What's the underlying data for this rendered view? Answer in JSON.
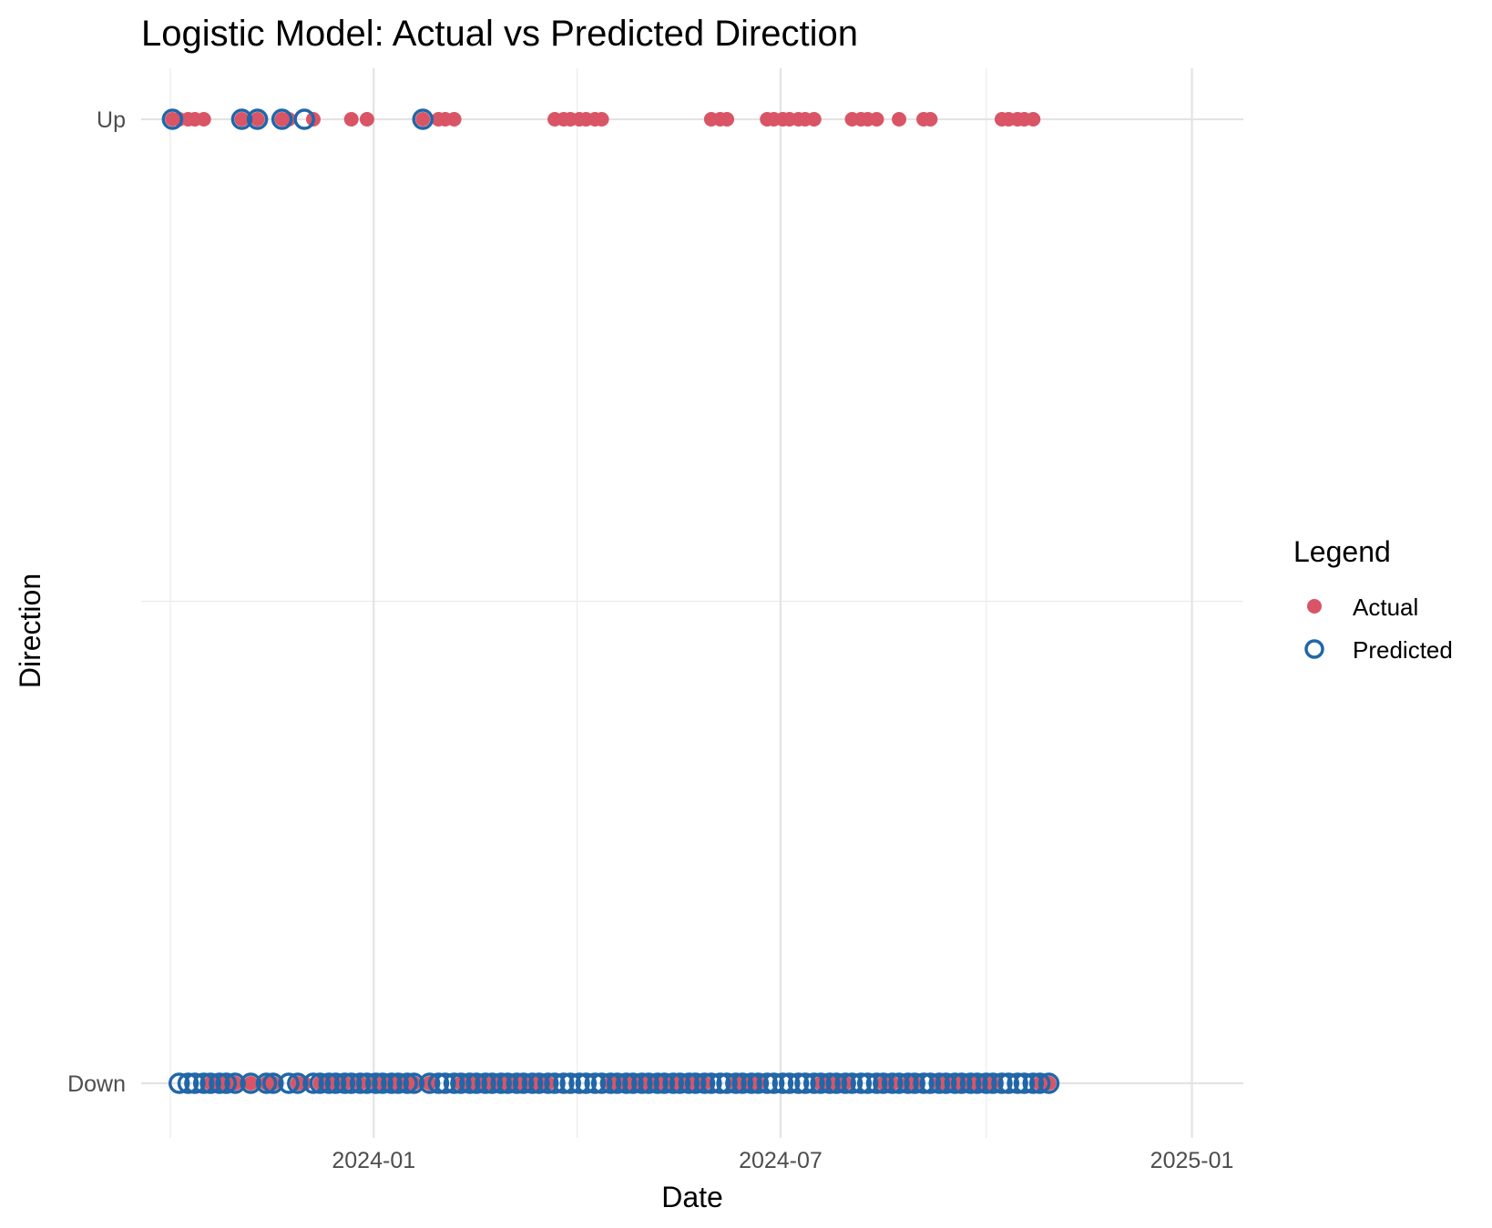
{
  "chart_data": {
    "type": "scatter",
    "title": "Logistic Model: Actual vs Predicted Direction",
    "xlabel": "Date",
    "ylabel": "Direction",
    "x_axis_type": "date",
    "xlim": [
      "2023-09-19",
      "2025-01-24"
    ],
    "x_ticks": [
      "2024-01",
      "2024-07",
      "2025-01"
    ],
    "y_categories": [
      "Down",
      "Up"
    ],
    "grid": true,
    "legend": {
      "title": "Legend",
      "position": "right",
      "entries": [
        "Actual",
        "Predicted"
      ]
    },
    "colors": {
      "Actual": "#d95566",
      "Predicted": "#2166a8"
    },
    "series": [
      {
        "name": "Actual",
        "marker": "filled-circle",
        "points": [
          {
            "x": "2023-10-03",
            "y": "Up"
          },
          {
            "x": "2023-10-06",
            "y": "Up"
          },
          {
            "x": "2023-10-10",
            "y": "Up"
          },
          {
            "x": "2023-10-13",
            "y": "Up"
          },
          {
            "x": "2023-10-17",
            "y": "Up"
          },
          {
            "x": "2023-10-20",
            "y": "Down"
          },
          {
            "x": "2023-10-24",
            "y": "Down"
          },
          {
            "x": "2023-10-27",
            "y": "Down"
          },
          {
            "x": "2023-10-31",
            "y": "Down"
          },
          {
            "x": "2023-11-03",
            "y": "Up"
          },
          {
            "x": "2023-11-07",
            "y": "Down"
          },
          {
            "x": "2023-11-10",
            "y": "Up"
          },
          {
            "x": "2023-11-14",
            "y": "Down"
          },
          {
            "x": "2023-11-17",
            "y": "Down"
          },
          {
            "x": "2023-11-21",
            "y": "Up"
          },
          {
            "x": "2023-11-24",
            "y": "Up"
          },
          {
            "x": "2023-11-28",
            "y": "Down"
          },
          {
            "x": "2023-12-01",
            "y": "Down"
          },
          {
            "x": "2023-12-05",
            "y": "Up"
          },
          {
            "x": "2023-12-08",
            "y": "Down"
          },
          {
            "x": "2023-12-12",
            "y": "Down"
          },
          {
            "x": "2023-12-15",
            "y": "Down"
          },
          {
            "x": "2023-12-19",
            "y": "Down"
          },
          {
            "x": "2023-12-22",
            "y": "Up"
          },
          {
            "x": "2023-12-26",
            "y": "Down"
          },
          {
            "x": "2023-12-29",
            "y": "Up"
          },
          {
            "x": "2024-01-02",
            "y": "Down"
          },
          {
            "x": "2024-01-05",
            "y": "Down"
          },
          {
            "x": "2024-01-09",
            "y": "Down"
          },
          {
            "x": "2024-01-12",
            "y": "Down"
          },
          {
            "x": "2024-01-16",
            "y": "Down"
          },
          {
            "x": "2024-01-19",
            "y": "Down"
          },
          {
            "x": "2024-01-23",
            "y": "Up"
          },
          {
            "x": "2024-01-26",
            "y": "Down"
          },
          {
            "x": "2024-01-30",
            "y": "Up"
          },
          {
            "x": "2024-02-02",
            "y": "Up"
          },
          {
            "x": "2024-02-06",
            "y": "Up"
          },
          {
            "x": "2024-02-09",
            "y": "Down"
          },
          {
            "x": "2024-02-13",
            "y": "Down"
          },
          {
            "x": "2024-02-16",
            "y": "Down"
          },
          {
            "x": "2024-02-20",
            "y": "Down"
          },
          {
            "x": "2024-02-23",
            "y": "Down"
          },
          {
            "x": "2024-02-27",
            "y": "Down"
          },
          {
            "x": "2024-03-01",
            "y": "Down"
          },
          {
            "x": "2024-03-05",
            "y": "Down"
          },
          {
            "x": "2024-03-08",
            "y": "Down"
          },
          {
            "x": "2024-03-12",
            "y": "Down"
          },
          {
            "x": "2024-03-15",
            "y": "Down"
          },
          {
            "x": "2024-03-19",
            "y": "Down"
          },
          {
            "x": "2024-03-22",
            "y": "Up"
          },
          {
            "x": "2024-03-26",
            "y": "Up"
          },
          {
            "x": "2024-03-29",
            "y": "Up"
          },
          {
            "x": "2024-04-02",
            "y": "Up"
          },
          {
            "x": "2024-04-05",
            "y": "Up"
          },
          {
            "x": "2024-04-09",
            "y": "Up"
          },
          {
            "x": "2024-04-12",
            "y": "Up"
          },
          {
            "x": "2024-04-16",
            "y": "Down"
          },
          {
            "x": "2024-04-19",
            "y": "Down"
          },
          {
            "x": "2024-04-23",
            "y": "Down"
          },
          {
            "x": "2024-04-26",
            "y": "Down"
          },
          {
            "x": "2024-04-30",
            "y": "Down"
          },
          {
            "x": "2024-05-03",
            "y": "Down"
          },
          {
            "x": "2024-05-07",
            "y": "Down"
          },
          {
            "x": "2024-05-10",
            "y": "Down"
          },
          {
            "x": "2024-05-14",
            "y": "Down"
          },
          {
            "x": "2024-05-17",
            "y": "Down"
          },
          {
            "x": "2024-05-21",
            "y": "Down"
          },
          {
            "x": "2024-05-24",
            "y": "Down"
          },
          {
            "x": "2024-05-28",
            "y": "Down"
          },
          {
            "x": "2024-05-31",
            "y": "Up"
          },
          {
            "x": "2024-06-04",
            "y": "Up"
          },
          {
            "x": "2024-06-07",
            "y": "Up"
          },
          {
            "x": "2024-06-11",
            "y": "Down"
          },
          {
            "x": "2024-06-14",
            "y": "Down"
          },
          {
            "x": "2024-06-18",
            "y": "Down"
          },
          {
            "x": "2024-06-21",
            "y": "Down"
          },
          {
            "x": "2024-06-25",
            "y": "Up"
          },
          {
            "x": "2024-06-28",
            "y": "Up"
          },
          {
            "x": "2024-07-02",
            "y": "Up"
          },
          {
            "x": "2024-07-05",
            "y": "Up"
          },
          {
            "x": "2024-07-09",
            "y": "Up"
          },
          {
            "x": "2024-07-12",
            "y": "Up"
          },
          {
            "x": "2024-07-16",
            "y": "Up"
          },
          {
            "x": "2024-07-19",
            "y": "Down"
          },
          {
            "x": "2024-07-23",
            "y": "Down"
          },
          {
            "x": "2024-07-26",
            "y": "Down"
          },
          {
            "x": "2024-07-30",
            "y": "Down"
          },
          {
            "x": "2024-08-02",
            "y": "Up"
          },
          {
            "x": "2024-08-06",
            "y": "Up"
          },
          {
            "x": "2024-08-09",
            "y": "Up"
          },
          {
            "x": "2024-08-13",
            "y": "Up"
          },
          {
            "x": "2024-08-16",
            "y": "Down"
          },
          {
            "x": "2024-08-20",
            "y": "Down"
          },
          {
            "x": "2024-08-23",
            "y": "Up"
          },
          {
            "x": "2024-08-27",
            "y": "Down"
          },
          {
            "x": "2024-08-30",
            "y": "Down"
          },
          {
            "x": "2024-09-03",
            "y": "Up"
          },
          {
            "x": "2024-09-06",
            "y": "Up"
          },
          {
            "x": "2024-09-10",
            "y": "Down"
          },
          {
            "x": "2024-09-13",
            "y": "Down"
          },
          {
            "x": "2024-09-17",
            "y": "Down"
          },
          {
            "x": "2024-09-20",
            "y": "Down"
          },
          {
            "x": "2024-09-24",
            "y": "Down"
          },
          {
            "x": "2024-09-27",
            "y": "Down"
          },
          {
            "x": "2024-10-01",
            "y": "Down"
          },
          {
            "x": "2024-10-04",
            "y": "Down"
          },
          {
            "x": "2024-10-08",
            "y": "Up"
          },
          {
            "x": "2024-10-11",
            "y": "Up"
          },
          {
            "x": "2024-10-15",
            "y": "Up"
          },
          {
            "x": "2024-10-18",
            "y": "Up"
          },
          {
            "x": "2024-10-22",
            "y": "Up"
          },
          {
            "x": "2024-10-25",
            "y": "Down"
          },
          {
            "x": "2024-10-29",
            "y": "Down"
          }
        ]
      },
      {
        "name": "Predicted",
        "marker": "open-circle",
        "points": [
          {
            "x": "2023-10-03",
            "y": "Up"
          },
          {
            "x": "2023-10-06",
            "y": "Down"
          },
          {
            "x": "2023-10-10",
            "y": "Down"
          },
          {
            "x": "2023-10-13",
            "y": "Down"
          },
          {
            "x": "2023-10-17",
            "y": "Down"
          },
          {
            "x": "2023-10-20",
            "y": "Down"
          },
          {
            "x": "2023-10-24",
            "y": "Down"
          },
          {
            "x": "2023-10-27",
            "y": "Down"
          },
          {
            "x": "2023-10-31",
            "y": "Down"
          },
          {
            "x": "2023-11-03",
            "y": "Up"
          },
          {
            "x": "2023-11-07",
            "y": "Down"
          },
          {
            "x": "2023-11-10",
            "y": "Up"
          },
          {
            "x": "2023-11-14",
            "y": "Down"
          },
          {
            "x": "2023-11-17",
            "y": "Down"
          },
          {
            "x": "2023-11-21",
            "y": "Up"
          },
          {
            "x": "2023-11-24",
            "y": "Down"
          },
          {
            "x": "2023-11-28",
            "y": "Down"
          },
          {
            "x": "2023-12-01",
            "y": "Up"
          },
          {
            "x": "2023-12-05",
            "y": "Down"
          },
          {
            "x": "2023-12-08",
            "y": "Down"
          },
          {
            "x": "2023-12-12",
            "y": "Down"
          },
          {
            "x": "2023-12-15",
            "y": "Down"
          },
          {
            "x": "2023-12-19",
            "y": "Down"
          },
          {
            "x": "2023-12-22",
            "y": "Down"
          },
          {
            "x": "2023-12-26",
            "y": "Down"
          },
          {
            "x": "2023-12-29",
            "y": "Down"
          },
          {
            "x": "2024-01-02",
            "y": "Down"
          },
          {
            "x": "2024-01-05",
            "y": "Down"
          },
          {
            "x": "2024-01-09",
            "y": "Down"
          },
          {
            "x": "2024-01-12",
            "y": "Down"
          },
          {
            "x": "2024-01-16",
            "y": "Down"
          },
          {
            "x": "2024-01-19",
            "y": "Down"
          },
          {
            "x": "2024-01-23",
            "y": "Up"
          },
          {
            "x": "2024-01-26",
            "y": "Down"
          },
          {
            "x": "2024-01-30",
            "y": "Down"
          },
          {
            "x": "2024-02-02",
            "y": "Down"
          },
          {
            "x": "2024-02-06",
            "y": "Down"
          },
          {
            "x": "2024-02-09",
            "y": "Down"
          },
          {
            "x": "2024-02-13",
            "y": "Down"
          },
          {
            "x": "2024-02-16",
            "y": "Down"
          },
          {
            "x": "2024-02-20",
            "y": "Down"
          },
          {
            "x": "2024-02-23",
            "y": "Down"
          },
          {
            "x": "2024-02-27",
            "y": "Down"
          },
          {
            "x": "2024-03-01",
            "y": "Down"
          },
          {
            "x": "2024-03-05",
            "y": "Down"
          },
          {
            "x": "2024-03-08",
            "y": "Down"
          },
          {
            "x": "2024-03-12",
            "y": "Down"
          },
          {
            "x": "2024-03-15",
            "y": "Down"
          },
          {
            "x": "2024-03-19",
            "y": "Down"
          },
          {
            "x": "2024-03-22",
            "y": "Down"
          },
          {
            "x": "2024-03-26",
            "y": "Down"
          },
          {
            "x": "2024-03-29",
            "y": "Down"
          },
          {
            "x": "2024-04-02",
            "y": "Down"
          },
          {
            "x": "2024-04-05",
            "y": "Down"
          },
          {
            "x": "2024-04-09",
            "y": "Down"
          },
          {
            "x": "2024-04-12",
            "y": "Down"
          },
          {
            "x": "2024-04-16",
            "y": "Down"
          },
          {
            "x": "2024-04-19",
            "y": "Down"
          },
          {
            "x": "2024-04-23",
            "y": "Down"
          },
          {
            "x": "2024-04-26",
            "y": "Down"
          },
          {
            "x": "2024-04-30",
            "y": "Down"
          },
          {
            "x": "2024-05-03",
            "y": "Down"
          },
          {
            "x": "2024-05-07",
            "y": "Down"
          },
          {
            "x": "2024-05-10",
            "y": "Down"
          },
          {
            "x": "2024-05-14",
            "y": "Down"
          },
          {
            "x": "2024-05-17",
            "y": "Down"
          },
          {
            "x": "2024-05-21",
            "y": "Down"
          },
          {
            "x": "2024-05-24",
            "y": "Down"
          },
          {
            "x": "2024-05-28",
            "y": "Down"
          },
          {
            "x": "2024-05-31",
            "y": "Down"
          },
          {
            "x": "2024-06-04",
            "y": "Down"
          },
          {
            "x": "2024-06-07",
            "y": "Down"
          },
          {
            "x": "2024-06-11",
            "y": "Down"
          },
          {
            "x": "2024-06-14",
            "y": "Down"
          },
          {
            "x": "2024-06-18",
            "y": "Down"
          },
          {
            "x": "2024-06-21",
            "y": "Down"
          },
          {
            "x": "2024-06-25",
            "y": "Down"
          },
          {
            "x": "2024-06-28",
            "y": "Down"
          },
          {
            "x": "2024-07-02",
            "y": "Down"
          },
          {
            "x": "2024-07-05",
            "y": "Down"
          },
          {
            "x": "2024-07-09",
            "y": "Down"
          },
          {
            "x": "2024-07-12",
            "y": "Down"
          },
          {
            "x": "2024-07-16",
            "y": "Down"
          },
          {
            "x": "2024-07-19",
            "y": "Down"
          },
          {
            "x": "2024-07-23",
            "y": "Down"
          },
          {
            "x": "2024-07-26",
            "y": "Down"
          },
          {
            "x": "2024-07-30",
            "y": "Down"
          },
          {
            "x": "2024-08-02",
            "y": "Down"
          },
          {
            "x": "2024-08-06",
            "y": "Down"
          },
          {
            "x": "2024-08-09",
            "y": "Down"
          },
          {
            "x": "2024-08-13",
            "y": "Down"
          },
          {
            "x": "2024-08-16",
            "y": "Down"
          },
          {
            "x": "2024-08-20",
            "y": "Down"
          },
          {
            "x": "2024-08-23",
            "y": "Down"
          },
          {
            "x": "2024-08-27",
            "y": "Down"
          },
          {
            "x": "2024-08-30",
            "y": "Down"
          },
          {
            "x": "2024-09-03",
            "y": "Down"
          },
          {
            "x": "2024-09-06",
            "y": "Down"
          },
          {
            "x": "2024-09-10",
            "y": "Down"
          },
          {
            "x": "2024-09-13",
            "y": "Down"
          },
          {
            "x": "2024-09-17",
            "y": "Down"
          },
          {
            "x": "2024-09-20",
            "y": "Down"
          },
          {
            "x": "2024-09-24",
            "y": "Down"
          },
          {
            "x": "2024-09-27",
            "y": "Down"
          },
          {
            "x": "2024-10-01",
            "y": "Down"
          },
          {
            "x": "2024-10-04",
            "y": "Down"
          },
          {
            "x": "2024-10-08",
            "y": "Down"
          },
          {
            "x": "2024-10-11",
            "y": "Down"
          },
          {
            "x": "2024-10-15",
            "y": "Down"
          },
          {
            "x": "2024-10-18",
            "y": "Down"
          },
          {
            "x": "2024-10-22",
            "y": "Down"
          },
          {
            "x": "2024-10-25",
            "y": "Down"
          },
          {
            "x": "2024-10-29",
            "y": "Down"
          }
        ]
      }
    ]
  }
}
